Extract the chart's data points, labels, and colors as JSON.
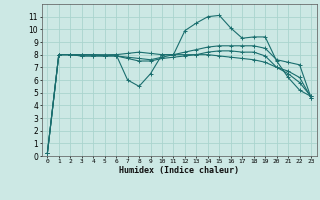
{
  "background_color": "#cce8e4",
  "grid_color": "#aad4ce",
  "line_color": "#1a6e6e",
  "xlabel": "Humidex (Indice chaleur)",
  "xlim": [
    -0.5,
    23.5
  ],
  "ylim": [
    0,
    12
  ],
  "xticks": [
    0,
    1,
    2,
    3,
    4,
    5,
    6,
    7,
    8,
    9,
    10,
    11,
    12,
    13,
    14,
    15,
    16,
    17,
    18,
    19,
    20,
    21,
    22,
    23
  ],
  "yticks": [
    0,
    1,
    2,
    3,
    4,
    5,
    6,
    7,
    8,
    9,
    10,
    11
  ],
  "series": [
    {
      "x": [
        0,
        1,
        2,
        3,
        4,
        5,
        6,
        7,
        8,
        9,
        10,
        11,
        12,
        13,
        14,
        15,
        16,
        17,
        18,
        19,
        20,
        21,
        22,
        23
      ],
      "y": [
        0.2,
        8.0,
        8.0,
        8.0,
        8.0,
        8.0,
        8.0,
        6.0,
        5.5,
        6.5,
        8.0,
        8.0,
        9.9,
        10.5,
        11.0,
        11.1,
        10.1,
        9.3,
        9.4,
        9.4,
        7.5,
        6.2,
        5.2,
        4.7
      ]
    },
    {
      "x": [
        0,
        1,
        2,
        3,
        4,
        5,
        6,
        7,
        8,
        9,
        10,
        11,
        12,
        13,
        14,
        15,
        16,
        17,
        18,
        19,
        20,
        21,
        22,
        23
      ],
      "y": [
        0.2,
        8.0,
        8.0,
        7.9,
        7.9,
        7.9,
        7.9,
        7.8,
        7.7,
        7.6,
        7.8,
        8.0,
        8.2,
        8.4,
        8.6,
        8.7,
        8.7,
        8.7,
        8.7,
        8.5,
        7.6,
        7.4,
        7.2,
        4.6
      ]
    },
    {
      "x": [
        0,
        1,
        2,
        3,
        4,
        5,
        6,
        7,
        8,
        9,
        10,
        11,
        12,
        13,
        14,
        15,
        16,
        17,
        18,
        19,
        20,
        21,
        22,
        23
      ],
      "y": [
        0.2,
        8.0,
        8.0,
        7.9,
        7.9,
        7.9,
        7.9,
        7.7,
        7.5,
        7.5,
        7.7,
        7.8,
        7.9,
        8.0,
        8.2,
        8.3,
        8.3,
        8.2,
        8.2,
        7.9,
        7.0,
        6.5,
        5.8,
        4.7
      ]
    },
    {
      "x": [
        0,
        1,
        2,
        3,
        4,
        5,
        6,
        7,
        8,
        9,
        10,
        11,
        12,
        13,
        14,
        15,
        16,
        17,
        18,
        19,
        20,
        21,
        22,
        23
      ],
      "y": [
        0.2,
        8.0,
        8.0,
        8.0,
        8.0,
        7.9,
        8.0,
        8.1,
        8.2,
        8.1,
        8.0,
        8.0,
        8.0,
        8.0,
        8.0,
        7.9,
        7.8,
        7.7,
        7.6,
        7.4,
        7.0,
        6.7,
        6.2,
        4.6
      ]
    }
  ]
}
